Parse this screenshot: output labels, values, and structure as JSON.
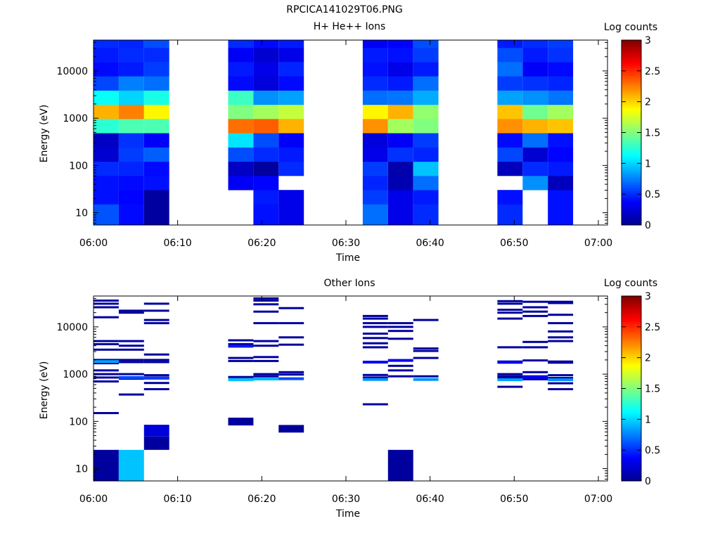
{
  "figure_title": "RPCICA141029T06.PNG",
  "colormap_stops": [
    [
      0.0,
      "#00008f"
    ],
    [
      0.125,
      "#0000ff"
    ],
    [
      0.375,
      "#00ffff"
    ],
    [
      0.625,
      "#ffff00"
    ],
    [
      0.875,
      "#ff0000"
    ],
    [
      1.0,
      "#800000"
    ]
  ],
  "chart_data": [
    {
      "type": "heatmap",
      "title": "H+ He++ Ions",
      "xlabel": "Time",
      "ylabel": "Energy (eV)",
      "colorbar_label": "Log counts",
      "x_range": [
        "06:00",
        "07:00"
      ],
      "x_ticks": [
        "06:00",
        "06:10",
        "06:20",
        "06:30",
        "06:40",
        "06:50",
        "07:00"
      ],
      "y_scale": "log",
      "y_range": [
        5.5,
        45000
      ],
      "y_ticks": [
        10,
        100,
        1000,
        10000
      ],
      "y_tick_labels": [
        "10",
        "100",
        "1000",
        "10000"
      ],
      "c_range": [
        0,
        3
      ],
      "c_ticks": [
        0,
        0.5,
        1,
        1.5,
        2,
        2.5,
        3
      ],
      "c_tick_labels": [
        "0",
        "0.5",
        "1",
        "1.5",
        "2",
        "2.5",
        "3"
      ],
      "energy_bins_eV": [
        10.7,
        21.4,
        42.8,
        85.6,
        171,
        343,
        686,
        1370,
        2740,
        5490,
        11000,
        21900,
        43900
      ],
      "columns": [
        {
          "start": "06:00",
          "end": "06:03",
          "values": [
            0.62,
            0.42,
            0.42,
            0.5,
            0.22,
            0.18,
            1.25,
            2.1,
            1.15,
            0.58,
            0.4,
            0.45,
            0.5
          ]
        },
        {
          "start": "06:03",
          "end": "06:06",
          "values": [
            0.4,
            0.38,
            0.4,
            0.48,
            0.55,
            0.52,
            1.35,
            2.25,
            1.0,
            0.75,
            0.45,
            0.5,
            0.48
          ]
        },
        {
          "start": "06:06",
          "end": "06:09",
          "values": [
            0.05,
            0.05,
            0.42,
            0.4,
            0.65,
            0.35,
            1.35,
            1.9,
            1.2,
            0.7,
            0.55,
            0.5,
            0.6
          ]
        },
        {
          "start": "06:16",
          "end": "06:19",
          "values": [
            null,
            null,
            0.35,
            0.18,
            0.6,
            1.05,
            2.3,
            1.5,
            1.3,
            0.4,
            0.45,
            0.35,
            0.5
          ]
        },
        {
          "start": "06:19",
          "end": "06:22",
          "values": [
            0.42,
            0.45,
            0.38,
            0.05,
            0.5,
            0.6,
            2.35,
            1.6,
            0.8,
            0.25,
            0.3,
            0.22,
            0.4
          ]
        },
        {
          "start": "06:22",
          "end": "06:25",
          "values": [
            0.3,
            0.3,
            null,
            0.5,
            0.45,
            0.35,
            2.1,
            1.7,
            0.85,
            0.4,
            0.48,
            0.3,
            0.45
          ]
        },
        {
          "start": "06:32",
          "end": "06:35",
          "values": [
            0.7,
            0.55,
            0.48,
            0.55,
            0.3,
            0.25,
            2.2,
            1.9,
            0.7,
            0.5,
            0.42,
            0.45,
            0.35
          ]
        },
        {
          "start": "06:35",
          "end": "06:38",
          "values": [
            0.3,
            0.3,
            0.12,
            0.1,
            0.52,
            0.35,
            1.6,
            2.1,
            0.72,
            0.45,
            0.3,
            0.42,
            0.38
          ]
        },
        {
          "start": "06:38",
          "end": "06:41",
          "values": [
            0.5,
            0.45,
            0.7,
            0.95,
            0.48,
            0.55,
            1.5,
            1.55,
            0.88,
            0.7,
            0.45,
            0.55,
            0.6
          ]
        },
        {
          "start": "06:48",
          "end": "06:51",
          "values": [
            0.5,
            0.42,
            null,
            0.15,
            0.58,
            0.4,
            2.2,
            2.05,
            0.85,
            0.55,
            0.7,
            0.6,
            0.45
          ]
        },
        {
          "start": "06:51",
          "end": "06:54",
          "values": [
            null,
            null,
            0.8,
            0.5,
            0.22,
            0.7,
            2.1,
            1.45,
            0.8,
            0.52,
            0.35,
            0.45,
            0.5
          ]
        },
        {
          "start": "06:54",
          "end": "06:57",
          "values": [
            0.42,
            0.42,
            0.15,
            0.45,
            0.38,
            0.42,
            2.05,
            1.6,
            0.72,
            0.48,
            0.4,
            0.52,
            0.55
          ]
        }
      ]
    },
    {
      "type": "heatmap",
      "title": "Other Ions",
      "xlabel": "Time",
      "ylabel": "Energy (eV)",
      "colorbar_label": "Log counts",
      "x_range": [
        "06:00",
        "07:00"
      ],
      "x_ticks": [
        "06:00",
        "06:10",
        "06:20",
        "06:30",
        "06:40",
        "06:50",
        "07:00"
      ],
      "y_scale": "log",
      "y_range": [
        5.5,
        45000
      ],
      "y_ticks": [
        10,
        100,
        1000,
        10000
      ],
      "y_tick_labels": [
        "10",
        "100",
        "1000",
        "10000"
      ],
      "c_range": [
        0,
        3
      ],
      "c_ticks": [
        0,
        0.5,
        1,
        1.5,
        2,
        2.5,
        3
      ],
      "c_tick_labels": [
        "0",
        "0.5",
        "1",
        "1.5",
        "2",
        "2.5",
        "3"
      ],
      "lines": [
        {
          "start": "06:00",
          "end": "06:03",
          "energies": [
            36000,
            31000,
            26000,
            16000,
            5000,
            4300,
            3300,
            2000,
            1800,
            1700,
            1200,
            1000,
            850,
            700,
            150
          ],
          "value": 0.05
        },
        {
          "start": "06:03",
          "end": "06:06",
          "energies": [
            22000,
            20000,
            5000,
            4000,
            3300,
            2000,
            1800,
            1000,
            800,
            370
          ],
          "value": 0.05
        },
        {
          "start": "06:06",
          "end": "06:09",
          "energies": [
            31000,
            22000,
            14000,
            12000,
            2600,
            2000,
            1800,
            950,
            850,
            650,
            480
          ],
          "value": 0.05
        },
        {
          "start": "06:16",
          "end": "06:19",
          "energies": [
            5200,
            4300,
            2200,
            1900,
            870,
            780
          ],
          "value": 0.05
        },
        {
          "start": "06:19",
          "end": "06:22",
          "energies": [
            40000,
            36000,
            30000,
            21000,
            12000,
            5000,
            4000,
            2300,
            1900,
            1000,
            900
          ],
          "value": 0.05
        },
        {
          "start": "06:22",
          "end": "06:25",
          "energies": [
            25000,
            12000,
            6000,
            4200,
            1100,
            980
          ],
          "value": 0.05
        },
        {
          "start": "06:32",
          "end": "06:35",
          "energies": [
            17000,
            15000,
            12000,
            10000,
            7200,
            5800,
            4500,
            3700,
            960,
            850,
            230
          ],
          "value": 0.05
        },
        {
          "start": "06:35",
          "end": "06:38",
          "energies": [
            12000,
            10000,
            8200,
            5600,
            1500,
            1200,
            900
          ],
          "value": 0.05
        },
        {
          "start": "06:38",
          "end": "06:41",
          "energies": [
            14000,
            3500,
            3100,
            2200,
            900
          ],
          "value": 0.05
        },
        {
          "start": "06:48",
          "end": "06:51",
          "energies": [
            35000,
            31000,
            23000,
            20000,
            15000,
            3700,
            1850,
            1000,
            900,
            820,
            540
          ],
          "value": 0.05
        },
        {
          "start": "06:51",
          "end": "06:54",
          "energies": [
            34000,
            26000,
            21000,
            17000,
            4800,
            3700,
            1950,
            1100,
            900,
            780
          ],
          "value": 0.05
        },
        {
          "start": "06:54",
          "end": "06:57",
          "energies": [
            34000,
            32000,
            18000,
            12000,
            8000,
            6000,
            5000,
            1850,
            1750,
            950,
            830,
            640,
            480
          ],
          "value": 0.05
        }
      ],
      "highlights": [
        {
          "start": "06:00",
          "end": "06:03",
          "energy": 1850,
          "value": 0.85
        },
        {
          "start": "06:03",
          "end": "06:06",
          "energy": 850,
          "value": 0.6
        },
        {
          "start": "06:06",
          "end": "06:09",
          "energy": 820,
          "value": 0.55
        },
        {
          "start": "06:16",
          "end": "06:19",
          "energy": 3900,
          "value": 0.45
        },
        {
          "start": "06:16",
          "end": "06:19",
          "energy": 760,
          "value": 0.95
        },
        {
          "start": "06:19",
          "end": "06:22",
          "energy": 790,
          "value": 0.9
        },
        {
          "start": "06:22",
          "end": "06:25",
          "energy": 800,
          "value": 0.6
        },
        {
          "start": "06:32",
          "end": "06:35",
          "energy": 1800,
          "value": 0.35
        },
        {
          "start": "06:32",
          "end": "06:35",
          "energy": 770,
          "value": 0.8
        },
        {
          "start": "06:35",
          "end": "06:38",
          "energy": 1950,
          "value": 0.35
        },
        {
          "start": "06:38",
          "end": "06:41",
          "energy": 770,
          "value": 0.8
        },
        {
          "start": "06:48",
          "end": "06:51",
          "energy": 1780,
          "value": 0.35
        },
        {
          "start": "06:48",
          "end": "06:51",
          "energy": 760,
          "value": 0.85
        },
        {
          "start": "06:51",
          "end": "06:54",
          "energy": 860,
          "value": 0.35
        },
        {
          "start": "06:54",
          "end": "06:57",
          "energy": 760,
          "value": 0.8
        }
      ],
      "blocks": [
        {
          "start": "06:00",
          "end": "06:03",
          "e_low": 5.5,
          "e_high": 25,
          "value": 0.05
        },
        {
          "start": "06:03",
          "end": "06:06",
          "e_low": 5.5,
          "e_high": 25,
          "value": 0.95
        },
        {
          "start": "06:06",
          "end": "06:09",
          "e_low": 25,
          "e_high": 48,
          "value": 0.05
        },
        {
          "start": "06:06",
          "end": "06:09",
          "e_low": 48,
          "e_high": 85,
          "value": 0.25
        },
        {
          "start": "06:16",
          "end": "06:19",
          "e_low": 82,
          "e_high": 120,
          "value": 0.05
        },
        {
          "start": "06:22",
          "end": "06:25",
          "e_low": 58,
          "e_high": 84,
          "value": 0.05
        },
        {
          "start": "06:35",
          "end": "06:38",
          "e_low": 5.5,
          "e_high": 25,
          "value": 0.05
        }
      ]
    }
  ]
}
